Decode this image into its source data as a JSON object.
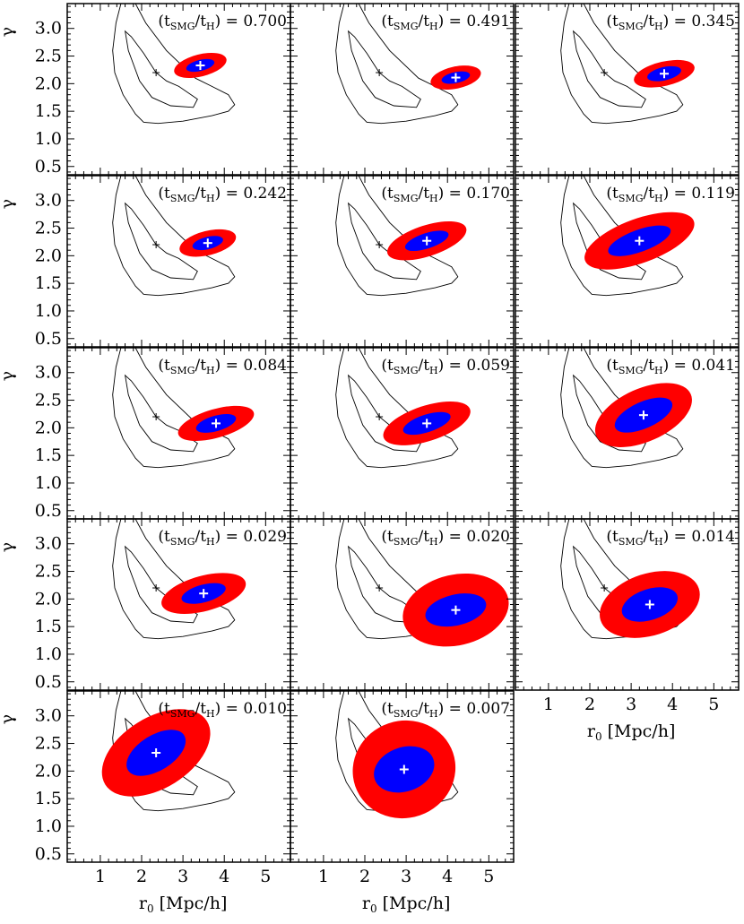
{
  "colors": {
    "outer_ellipse": "#ff0000",
    "inner_ellipse": "#0000ff",
    "marker_on_ellipse": "#ffffff",
    "contour": "#000000",
    "background": "#ffffff"
  },
  "chart_data": {
    "type": "scatter",
    "layout": "grid of small-multiple contour panels, 3 columns x 5 rows (14 panels)",
    "xlabel": "r₀ [Mpc/h]",
    "ylabel": "γ",
    "x_unit": "[Mpc/h]",
    "xlim": [
      0.2,
      5.6
    ],
    "ylim": [
      0.35,
      3.45
    ],
    "xticks": [
      1,
      2,
      3,
      4,
      5
    ],
    "xtick_labels": [
      "1",
      "2",
      "3",
      "4",
      "5"
    ],
    "yticks": [
      0.5,
      1.0,
      1.5,
      2.0,
      2.5,
      3.0
    ],
    "ytick_labels": [
      "0.5",
      "1.0",
      "1.5",
      "2.0",
      "2.5",
      "3.0"
    ],
    "label_prefix": "(t",
    "label_sub1": "SMG",
    "label_mid": "/t",
    "label_sub2": "H",
    "label_suffix": ") = ",
    "reference": {
      "best_fit": [
        2.35,
        2.2
      ],
      "inner_contour": [
        [
          2.35,
          2.2
        ],
        [
          2.05,
          2.55
        ],
        [
          1.75,
          2.85
        ],
        [
          1.6,
          2.95
        ],
        [
          1.68,
          2.6
        ],
        [
          1.95,
          2.05
        ],
        [
          2.25,
          1.75
        ],
        [
          2.7,
          1.6
        ],
        [
          3.25,
          1.57
        ],
        [
          3.35,
          1.72
        ],
        [
          2.9,
          1.95
        ],
        [
          2.6,
          2.05
        ],
        [
          2.35,
          2.2
        ]
      ],
      "outer_contour": [
        [
          1.5,
          3.45
        ],
        [
          1.38,
          3.1
        ],
        [
          1.3,
          2.6
        ],
        [
          1.35,
          2.2
        ],
        [
          1.55,
          1.8
        ],
        [
          1.85,
          1.45
        ],
        [
          2.05,
          1.3
        ],
        [
          2.4,
          1.28
        ],
        [
          3.0,
          1.32
        ],
        [
          3.7,
          1.42
        ],
        [
          4.1,
          1.5
        ],
        [
          4.25,
          1.62
        ],
        [
          4.1,
          1.8
        ],
        [
          3.7,
          1.95
        ],
        [
          3.3,
          2.1
        ],
        [
          2.6,
          2.6
        ],
        [
          2.1,
          3.1
        ],
        [
          1.85,
          3.45
        ]
      ]
    },
    "panels": [
      {
        "label": "0.700",
        "best_fit": [
          3.42,
          2.33
        ],
        "red_ellipse": {
          "rx": 0.65,
          "ry": 0.05,
          "angle_deg": -14
        },
        "blue_ellipse": {
          "rx": 0.35,
          "ry": 0.025,
          "angle_deg": -14
        }
      },
      {
        "label": "0.491",
        "best_fit": [
          4.2,
          2.11
        ],
        "red_ellipse": {
          "rx": 0.62,
          "ry": 0.05,
          "angle_deg": -12
        },
        "blue_ellipse": {
          "rx": 0.35,
          "ry": 0.025,
          "angle_deg": -12
        }
      },
      {
        "label": "0.345",
        "best_fit": [
          3.8,
          2.18
        ],
        "red_ellipse": {
          "rx": 0.75,
          "ry": 0.055,
          "angle_deg": -13
        },
        "blue_ellipse": {
          "rx": 0.42,
          "ry": 0.03,
          "angle_deg": -13
        }
      },
      {
        "label": "0.242",
        "best_fit": [
          3.6,
          2.23
        ],
        "red_ellipse": {
          "rx": 0.7,
          "ry": 0.055,
          "angle_deg": -14
        },
        "blue_ellipse": {
          "rx": 0.38,
          "ry": 0.028,
          "angle_deg": -14
        }
      },
      {
        "label": "0.170",
        "best_fit": [
          3.5,
          2.27
        ],
        "red_ellipse": {
          "rx": 1.0,
          "ry": 0.07,
          "angle_deg": -18
        },
        "blue_ellipse": {
          "rx": 0.55,
          "ry": 0.035,
          "angle_deg": -18
        }
      },
      {
        "label": "0.119",
        "best_fit": [
          3.2,
          2.27
        ],
        "red_ellipse": {
          "rx": 1.4,
          "ry": 0.1,
          "angle_deg": -20
        },
        "blue_ellipse": {
          "rx": 0.8,
          "ry": 0.05,
          "angle_deg": -20
        }
      },
      {
        "label": "0.084",
        "best_fit": [
          3.8,
          2.08
        ],
        "red_ellipse": {
          "rx": 0.95,
          "ry": 0.065,
          "angle_deg": -16
        },
        "blue_ellipse": {
          "rx": 0.5,
          "ry": 0.035,
          "angle_deg": -16
        }
      },
      {
        "label": "0.059",
        "best_fit": [
          3.5,
          2.08
        ],
        "red_ellipse": {
          "rx": 1.1,
          "ry": 0.08,
          "angle_deg": -18
        },
        "blue_ellipse": {
          "rx": 0.6,
          "ry": 0.04,
          "angle_deg": -18
        }
      },
      {
        "label": "0.041",
        "best_fit": [
          3.3,
          2.23
        ],
        "red_ellipse": {
          "rx": 1.25,
          "ry": 0.12,
          "angle_deg": -24
        },
        "blue_ellipse": {
          "rx": 0.75,
          "ry": 0.06,
          "angle_deg": -24
        }
      },
      {
        "label": "0.029",
        "best_fit": [
          3.5,
          2.1
        ],
        "red_ellipse": {
          "rx": 1.05,
          "ry": 0.08,
          "angle_deg": -15
        },
        "blue_ellipse": {
          "rx": 0.55,
          "ry": 0.04,
          "angle_deg": -15
        }
      },
      {
        "label": "0.020",
        "best_fit": [
          4.2,
          1.8
        ],
        "red_ellipse": {
          "rx": 1.3,
          "ry": 0.16,
          "angle_deg": -13
        },
        "blue_ellipse": {
          "rx": 0.75,
          "ry": 0.07,
          "angle_deg": -13
        }
      },
      {
        "label": "0.014",
        "best_fit": [
          3.45,
          1.9
        ],
        "red_ellipse": {
          "rx": 1.25,
          "ry": 0.14,
          "angle_deg": -18
        },
        "blue_ellipse": {
          "rx": 0.7,
          "ry": 0.07,
          "angle_deg": -18
        }
      },
      {
        "label": "0.010",
        "best_fit": [
          2.35,
          2.33
        ],
        "red_ellipse": {
          "rx": 1.45,
          "ry": 0.16,
          "angle_deg": -32
        },
        "blue_ellipse": {
          "rx": 0.8,
          "ry": 0.08,
          "angle_deg": -32
        }
      },
      {
        "label": "0.007",
        "best_fit": [
          2.95,
          2.03
        ],
        "red_ellipse": {
          "rx": 1.25,
          "ry": 0.22,
          "angle_deg": -19
        },
        "blue_ellipse": {
          "rx": 0.75,
          "ry": 0.1,
          "angle_deg": -19
        }
      }
    ]
  }
}
